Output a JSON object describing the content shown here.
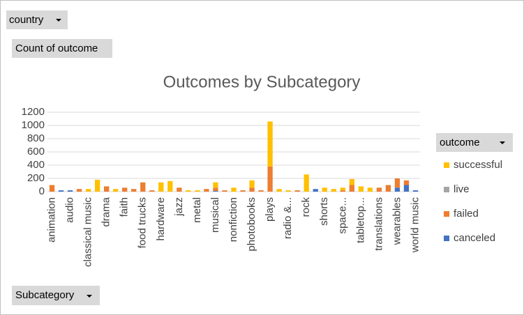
{
  "field_buttons": {
    "filter": "country",
    "values": "Count of outcome",
    "axis": "Subcategory"
  },
  "chart_data": {
    "type": "stacked_bar",
    "title": "Outcomes by Subcategory",
    "categories": [
      "animation",
      null,
      "audio",
      null,
      "classical music",
      null,
      "drama",
      null,
      "faith",
      null,
      "food trucks",
      null,
      "hardware",
      null,
      "jazz",
      null,
      "metal",
      null,
      "musical",
      null,
      "nonfiction",
      null,
      "photobooks",
      null,
      "plays",
      null,
      "radio &...",
      null,
      "rock",
      null,
      "shorts",
      null,
      "space...",
      null,
      "tabletop...",
      null,
      "translations",
      null,
      "wearables",
      null,
      "world music"
    ],
    "legend_title": "outcome",
    "series": [
      {
        "name": "successful",
        "color": "#ffc000",
        "values": [
          0,
          0,
          0,
          0,
          40,
          180,
          0,
          40,
          0,
          0,
          0,
          0,
          140,
          160,
          0,
          20,
          20,
          0,
          80,
          0,
          60,
          0,
          110,
          0,
          680,
          40,
          20,
          0,
          260,
          0,
          60,
          40,
          40,
          90,
          80,
          60,
          0,
          0,
          0,
          0,
          0
        ]
      },
      {
        "name": "live",
        "color": "#a5a5a5",
        "values": [
          0,
          0,
          0,
          0,
          0,
          0,
          0,
          0,
          0,
          0,
          0,
          0,
          0,
          0,
          0,
          0,
          0,
          0,
          0,
          0,
          0,
          0,
          0,
          0,
          0,
          0,
          0,
          0,
          0,
          0,
          0,
          0,
          0,
          0,
          0,
          0,
          0,
          0,
          0,
          0,
          0
        ]
      },
      {
        "name": "failed",
        "color": "#ed7d31",
        "values": [
          100,
          0,
          0,
          40,
          0,
          0,
          80,
          0,
          60,
          40,
          140,
          20,
          0,
          0,
          60,
          0,
          0,
          40,
          50,
          20,
          0,
          20,
          60,
          20,
          380,
          0,
          0,
          20,
          0,
          0,
          0,
          0,
          20,
          100,
          0,
          0,
          60,
          100,
          140,
          70,
          0
        ]
      },
      {
        "name": "canceled",
        "color": "#4472c4",
        "values": [
          0,
          20,
          20,
          0,
          0,
          0,
          0,
          0,
          0,
          0,
          0,
          0,
          0,
          0,
          0,
          0,
          0,
          0,
          10,
          0,
          0,
          0,
          0,
          0,
          0,
          0,
          0,
          0,
          0,
          40,
          0,
          0,
          0,
          0,
          0,
          0,
          0,
          0,
          60,
          100,
          20
        ]
      }
    ],
    "ylim": [
      0,
      1200
    ],
    "yticks": [
      0,
      200,
      400,
      600,
      800,
      1000,
      1200
    ],
    "grid": true
  }
}
